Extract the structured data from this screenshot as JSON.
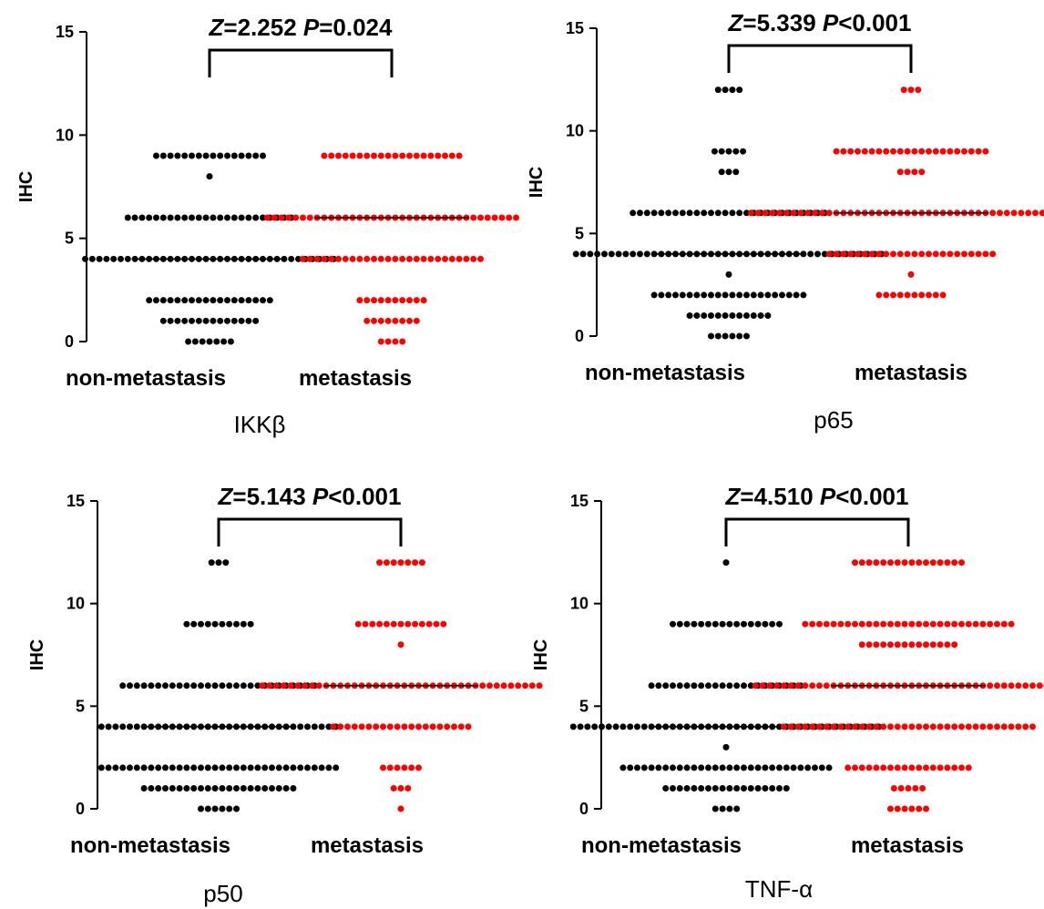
{
  "colors": {
    "group1": "#000000",
    "group2": "#ff0000",
    "median": "#000000"
  },
  "chart_data": [
    {
      "type": "scatter",
      "panel_label": "IKKβ",
      "ylabel": "IHC",
      "ylim": [
        0,
        15
      ],
      "yticks": [
        0,
        5,
        10,
        15
      ],
      "categories": [
        "non-metastasis",
        "metastasis"
      ],
      "stat_z": "2.252",
      "stat_p": "=0.024",
      "series": [
        {
          "counts": {
            "9": 16,
            "8": 1,
            "6": 24,
            "4": 36,
            "2": 18,
            "1": 14,
            "0": 7
          },
          "median": 4
        },
        {
          "counts": {
            "9": 20,
            "6": 36,
            "4": 26,
            "2": 10,
            "1": 8,
            "0": 4
          },
          "median": 6
        }
      ]
    },
    {
      "type": "scatter",
      "panel_label": "p65",
      "ylabel": "IHC",
      "ylim": [
        0,
        15
      ],
      "yticks": [
        0,
        5,
        10,
        15
      ],
      "categories": [
        "non-metastasis",
        "metastasis"
      ],
      "stat_z": "5.339",
      "stat_p": "<0.001",
      "series": [
        {
          "counts": {
            "12": 4,
            "9": 5,
            "8": 3,
            "6": 28,
            "4": 44,
            "3": 1,
            "2": 22,
            "1": 12,
            "0": 6
          },
          "median": 4
        },
        {
          "counts": {
            "12": 3,
            "9": 22,
            "8": 4,
            "6": 46,
            "4": 24,
            "3": 1,
            "2": 10
          },
          "median": 6
        }
      ]
    },
    {
      "type": "scatter",
      "panel_label": "p50",
      "ylabel": "IHC",
      "ylim": [
        0,
        15
      ],
      "yticks": [
        0,
        5,
        10,
        15
      ],
      "categories": [
        "non-metastasis",
        "metastasis"
      ],
      "stat_z": "5.143",
      "stat_p": "<0.001",
      "series": [
        {
          "counts": {
            "12": 3,
            "9": 10,
            "6": 28,
            "4": 34,
            "2": 34,
            "1": 22,
            "0": 6
          },
          "median": 4
        },
        {
          "counts": {
            "12": 7,
            "9": 13,
            "8": 1,
            "6": 40,
            "4": 20,
            "2": 6,
            "1": 3,
            "0": 1
          },
          "median": 6
        }
      ]
    },
    {
      "type": "scatter",
      "panel_label": "TNF-α",
      "ylabel": "IHC",
      "ylim": [
        0,
        15
      ],
      "yticks": [
        0,
        5,
        10,
        15
      ],
      "categories": [
        "non-metastasis",
        "metastasis"
      ],
      "stat_z": "4.510",
      "stat_p": "<0.001",
      "series": [
        {
          "counts": {
            "12": 1,
            "9": 16,
            "6": 22,
            "4": 44,
            "3": 1,
            "2": 30,
            "1": 18,
            "0": 4
          },
          "median": 4
        },
        {
          "counts": {
            "12": 16,
            "9": 30,
            "8": 14,
            "6": 44,
            "4": 36,
            "2": 18,
            "1": 5,
            "0": 6
          },
          "median": 6
        }
      ]
    }
  ]
}
